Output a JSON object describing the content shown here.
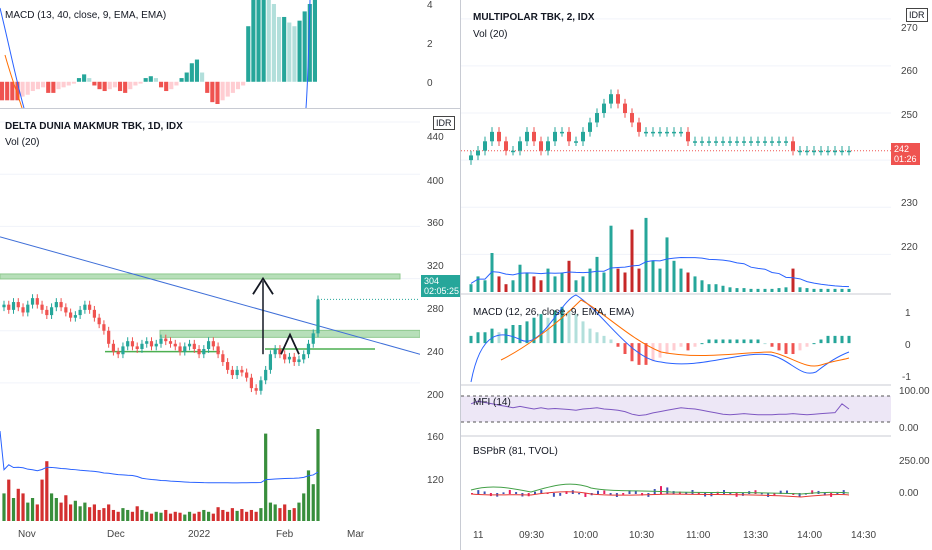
{
  "left": {
    "macd_header": "MACD (13, 40, close, 9, EMA, EMA)",
    "macd_ticks": [
      "4",
      "2",
      "0"
    ],
    "title": "DELTA DUNIA MAKMUR TBK, 1D, IDX",
    "vol_label": "Vol (20)",
    "currency_box": "IDR",
    "price_ticks": [
      "440",
      "400",
      "360",
      "320",
      "280",
      "240",
      "200",
      "160",
      "120"
    ],
    "price_badge": "304",
    "price_timer": "02:05:25",
    "x_ticks": [
      "Nov",
      "Dec",
      "2022",
      "Feb",
      "Mar"
    ],
    "badge_color": "#26a69a"
  },
  "right": {
    "title": "MULTIPOLAR TBK, 2, IDX",
    "vol_label": "Vol (20)",
    "currency_box": "IDR",
    "price_ticks": [
      "270",
      "260",
      "250",
      "240",
      "230",
      "220"
    ],
    "price_badge": "242",
    "price_timer": "01:26",
    "badge_color": "#ef5350",
    "macd_label": "MACD (12, 26, close, 9, EMA, EMA)",
    "macd_ticks": [
      "1",
      "0",
      "-1"
    ],
    "mfi_label": "MFI (14)",
    "mfi_ticks": [
      "100.00",
      "0.00"
    ],
    "bspbr_label": "BSPbR (81, TVOL)",
    "bspbr_ticks": [
      "250.00",
      "0.00"
    ],
    "x_ticks": [
      "11",
      "09:30",
      "10:00",
      "10:30",
      "11:00",
      "13:30",
      "14:00",
      "14:30"
    ]
  },
  "chart_data": [
    {
      "type": "candlestick",
      "title": "DELTA DUNIA MAKMUR TBK, 1D, IDX",
      "ylim": [
        220,
        450
      ],
      "x_ticks": [
        "Nov",
        "Dec",
        "2022",
        "Feb",
        "Mar"
      ],
      "close": [
        300,
        296,
        302,
        298,
        294,
        300,
        305,
        300,
        296,
        292,
        298,
        302,
        298,
        294,
        290,
        292,
        296,
        300,
        296,
        290,
        285,
        280,
        270,
        264,
        262,
        268,
        272,
        268,
        266,
        270,
        272,
        268,
        270,
        274,
        272,
        270,
        268,
        264,
        268,
        270,
        266,
        262,
        266,
        272,
        268,
        262,
        256,
        250,
        246,
        250,
        248,
        244,
        236,
        234,
        242,
        250,
        262,
        266,
        262,
        258,
        260,
        256,
        258,
        262,
        270,
        278,
        304
      ],
      "last_price": 304,
      "volume_ylim": [
        0,
        1
      ],
      "volume_relative": [
        0.3,
        0.45,
        0.25,
        0.35,
        0.3,
        0.2,
        0.25,
        0.18,
        0.45,
        0.65,
        0.3,
        0.25,
        0.2,
        0.28,
        0.18,
        0.22,
        0.16,
        0.2,
        0.15,
        0.18,
        0.12,
        0.14,
        0.18,
        0.12,
        0.1,
        0.14,
        0.12,
        0.1,
        0.16,
        0.12,
        0.1,
        0.08,
        0.1,
        0.09,
        0.12,
        0.08,
        0.1,
        0.09,
        0.07,
        0.1,
        0.08,
        0.1,
        0.12,
        0.1,
        0.08,
        0.15,
        0.12,
        0.1,
        0.14,
        0.11,
        0.13,
        0.1,
        0.12,
        0.1,
        0.14,
        0.95,
        0.2,
        0.18,
        0.14,
        0.18,
        0.12,
        0.14,
        0.2,
        0.3,
        0.55,
        0.4,
        1.0
      ],
      "macd_ylim": [
        -1.2,
        4.2
      ],
      "macd_histogram": [
        -1.0,
        -1.0,
        -1.0,
        -1.0,
        -0.8,
        -0.7,
        -0.5,
        -0.4,
        -0.3,
        -0.6,
        -0.6,
        -0.4,
        -0.3,
        -0.2,
        -0.1,
        0.2,
        0.4,
        0.2,
        -0.2,
        -0.4,
        -0.5,
        -0.4,
        -0.3,
        -0.5,
        -0.6,
        -0.4,
        -0.2,
        -0.1,
        0.2,
        0.3,
        0.2,
        -0.3,
        -0.5,
        -0.4,
        -0.2,
        0.2,
        0.5,
        1.0,
        1.2,
        0.5,
        -0.6,
        -1.1,
        -1.2,
        -1.0,
        -0.8,
        -0.6,
        -0.4,
        -0.2,
        3.0,
        4.5,
        5.5,
        6.0,
        5.0,
        4.2,
        3.5,
        3.5,
        3.2,
        3.0,
        3.3,
        3.8,
        4.2,
        4.6
      ]
    },
    {
      "type": "candlestick",
      "title": "MULTIPOLAR TBK, 2, IDX",
      "ylim": [
        212,
        274
      ],
      "x_ticks": [
        "11",
        "09:30",
        "10:00",
        "10:30",
        "11:00",
        "13:30",
        "14:00",
        "14:30"
      ],
      "close": [
        241,
        242,
        244,
        246,
        244,
        242,
        242,
        244,
        246,
        244,
        242,
        244,
        246,
        246,
        244,
        244,
        246,
        248,
        250,
        252,
        254,
        252,
        250,
        248,
        246,
        246,
        246,
        246,
        246,
        246,
        246,
        244,
        244,
        244,
        244,
        244,
        244,
        244,
        244,
        244,
        244,
        244,
        244,
        244,
        244,
        244,
        242,
        242,
        242,
        242,
        242,
        242,
        242,
        242,
        242
      ],
      "last_price": 242,
      "volume_relative": [
        0.1,
        0.2,
        0.15,
        0.5,
        0.2,
        0.1,
        0.15,
        0.35,
        0.25,
        0.2,
        0.15,
        0.3,
        0.2,
        0.25,
        0.4,
        0.15,
        0.2,
        0.3,
        0.45,
        0.25,
        0.85,
        0.3,
        0.25,
        0.8,
        0.3,
        0.95,
        0.4,
        0.3,
        0.7,
        0.4,
        0.3,
        0.25,
        0.2,
        0.15,
        0.1,
        0.1,
        0.08,
        0.06,
        0.05,
        0.05,
        0.04,
        0.04,
        0.04,
        0.04,
        0.05,
        0.06,
        0.3,
        0.06,
        0.05,
        0.04,
        0.04,
        0.04,
        0.04,
        0.04,
        0.04
      ],
      "macd_ylim": [
        -1.1,
        1.3
      ],
      "macd_histogram": [
        0.2,
        0.3,
        0.3,
        0.4,
        0.3,
        0.4,
        0.5,
        0.5,
        0.6,
        0.7,
        0.8,
        0.7,
        0.9,
        1.0,
        0.9,
        0.8,
        0.6,
        0.4,
        0.3,
        0.2,
        0.1,
        -0.1,
        -0.3,
        -0.5,
        -0.6,
        -0.6,
        -0.5,
        -0.4,
        -0.3,
        -0.2,
        -0.1,
        -0.2,
        -0.1,
        0.0,
        0.1,
        0.1,
        0.1,
        0.1,
        0.1,
        0.1,
        0.1,
        0.1,
        0.0,
        -0.1,
        -0.2,
        -0.3,
        -0.3,
        -0.2,
        -0.1,
        0.0,
        0.1,
        0.2,
        0.2,
        0.2,
        0.2
      ],
      "mfi_ylim": [
        0,
        100
      ],
      "mfi": [
        70,
        80,
        75,
        70,
        65,
        60,
        55,
        60,
        55,
        50,
        55,
        50,
        52,
        50,
        48,
        45,
        50,
        52,
        55,
        50,
        48,
        45,
        40,
        30,
        25,
        28,
        35,
        40,
        45,
        50,
        55,
        52,
        50,
        45,
        40,
        35,
        30,
        28,
        30,
        32,
        30,
        28,
        28,
        28,
        30,
        30,
        32,
        30,
        28,
        30,
        32,
        34,
        36,
        70,
        50
      ],
      "bspbr_ylim": [
        -100,
        300
      ]
    }
  ]
}
